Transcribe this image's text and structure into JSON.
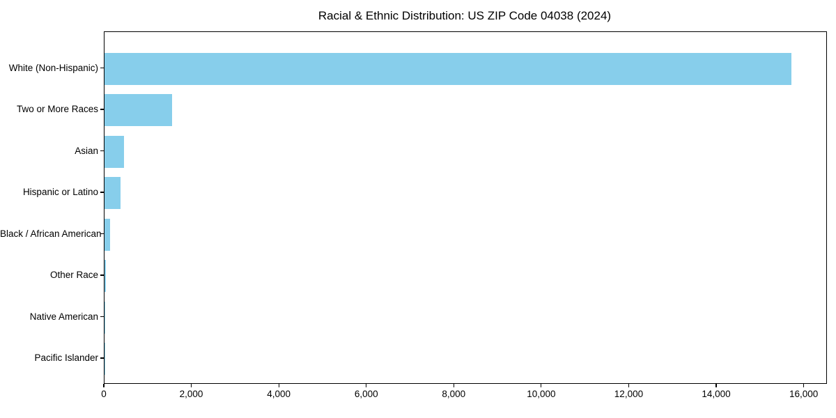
{
  "chart_data": {
    "type": "bar",
    "orientation": "horizontal",
    "title": "Racial & Ethnic Distribution: US ZIP Code 04038 (2024)",
    "categories": [
      "White (Non-Hispanic)",
      "Two or More Races",
      "Asian",
      "Hispanic or Latino",
      "Black / African American",
      "Other Race",
      "Native American",
      "Pacific Islander"
    ],
    "values": [
      15700,
      1550,
      450,
      370,
      130,
      30,
      20,
      5
    ],
    "xlabel": "",
    "ylabel": "",
    "xlim": [
      0,
      16500
    ],
    "xticks": [
      0,
      2000,
      4000,
      6000,
      8000,
      10000,
      12000,
      14000,
      16000
    ],
    "xtick_labels": [
      "0",
      "2,000",
      "4,000",
      "6,000",
      "8,000",
      "10,000",
      "12,000",
      "14,000",
      "16,000"
    ],
    "bar_color": "#87CEEB",
    "text_color": "#000000",
    "grid": false,
    "legend_position": "none"
  }
}
